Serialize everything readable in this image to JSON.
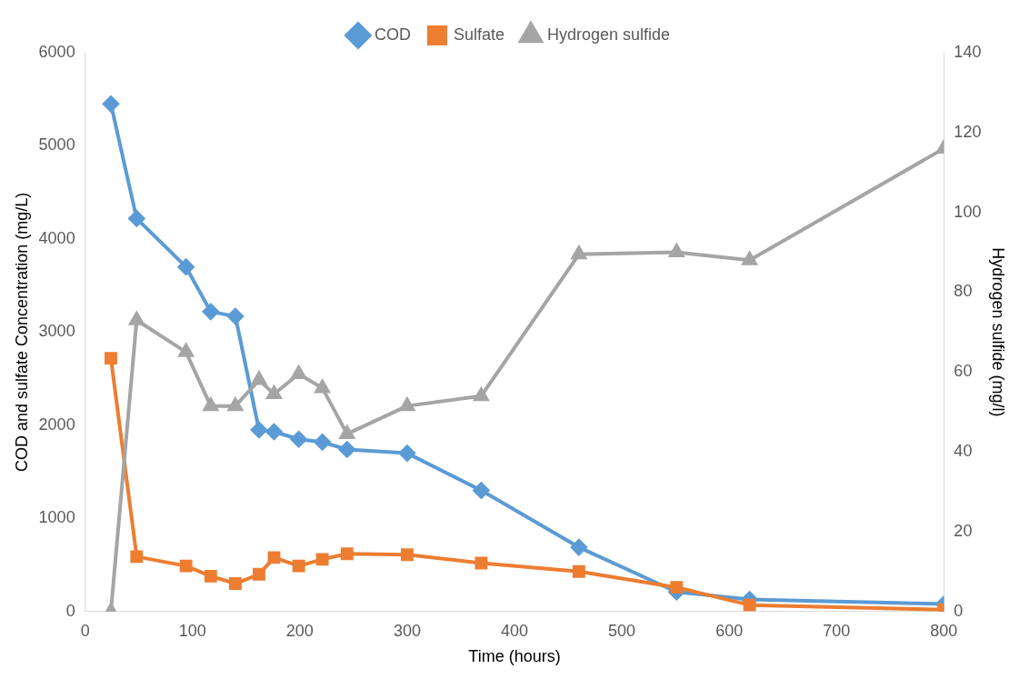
{
  "chart_data": {
    "type": "line",
    "xlabel": "Time (hours)",
    "ylabel": "COD and sulfate Concentration (mg/L)",
    "y2label": "Hydrogen sulfide (mg/l)",
    "x": [
      24,
      48,
      94,
      117,
      140,
      162,
      176,
      199,
      221,
      244,
      300,
      369,
      460,
      551,
      619,
      800
    ],
    "xlim": [
      0,
      800
    ],
    "xticks": [
      0,
      100,
      200,
      300,
      400,
      500,
      600,
      700,
      800
    ],
    "ylim": [
      0,
      6000
    ],
    "yticks": [
      0,
      1000,
      2000,
      3000,
      4000,
      5000,
      6000
    ],
    "y2lim": [
      0,
      140
    ],
    "y2ticks": [
      0,
      20,
      40,
      60,
      80,
      100,
      120,
      140
    ],
    "legend": "top",
    "grid": false,
    "line_style": "solid",
    "series": [
      {
        "name": "COD",
        "color": "#5b9bd5",
        "marker": "diamond",
        "values": [
          5450,
          4220,
          3700,
          3220,
          3170,
          1950,
          1930,
          1850,
          1820,
          1740,
          1700,
          1300,
          690,
          210,
          130,
          80
        ]
      },
      {
        "name": "Sulfate",
        "color": "#ed7d31",
        "marker": "square",
        "values": [
          2720,
          590,
          490,
          380,
          300,
          400,
          580,
          490,
          560,
          620,
          610,
          520,
          430,
          260,
          70,
          20
        ]
      },
      {
        "name": "Hydrogen sulfide",
        "color": "#a5a5a5",
        "marker": "triangle",
        "axis": "y2",
        "values": [
          0,
          73,
          65,
          51.5,
          51.5,
          58,
          54.5,
          59.5,
          56,
          44.5,
          51.5,
          54,
          89.5,
          90,
          88,
          116
        ]
      }
    ]
  }
}
